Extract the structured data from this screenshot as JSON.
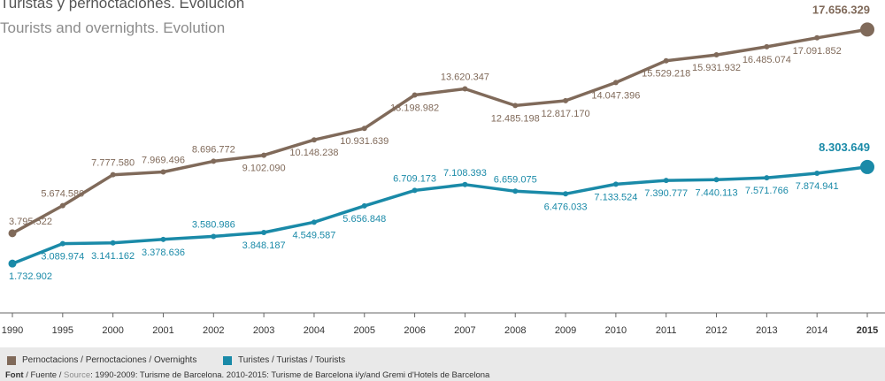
{
  "header": {
    "title": "Turistas y pernoctaciones. Evolución",
    "subtitle": "Tourists and overnights. Evolution"
  },
  "colors": {
    "overnights": "#806a5a",
    "tourists": "#1a8aa8",
    "axis": "#666666"
  },
  "legend": {
    "overnights_label": "Pernoctacions / Pernoctaciones / Overnights",
    "tourists_label": "Turistes / Turistas / Tourists"
  },
  "source": {
    "label": "Font",
    "label_middle": " / Fuente / ",
    "label_en": "Source",
    "text": ": 1990-2009: Turisme de Barcelona. 2010-2015: Turisme de Barcelona i/y/and Gremi d'Hotels de Barcelona"
  },
  "chart_data": {
    "type": "line",
    "x": [
      "1990",
      "1995",
      "2000",
      "2001",
      "2002",
      "2003",
      "2004",
      "2005",
      "2006",
      "2007",
      "2008",
      "2009",
      "2010",
      "2011",
      "2012",
      "2013",
      "2014",
      "2015"
    ],
    "ylim": [
      0,
      18500000
    ],
    "grid": false,
    "legend_position": "bottom",
    "series": [
      {
        "name": "Pernoctacions / Pernoctaciones / Overnights",
        "values": [
          3795522,
          5674580,
          7777580,
          7969496,
          8696772,
          9102090,
          10148238,
          10931639,
          13198982,
          13620347,
          12485198,
          12817170,
          14047396,
          15529218,
          15931932,
          16485074,
          17091852,
          17656329
        ],
        "labels": [
          "3.795.522",
          "5.674.580",
          "7.777.580",
          "7.969.496",
          "8.696.772",
          "9.102.090",
          "10.148.238",
          "10.931.639",
          "13.198.982",
          "13.620.347",
          "12.485.198",
          "12.817.170",
          "14.047.396",
          "15.529.218",
          "15.931.932",
          "16.485.074",
          "17.091.852",
          "17.656.329"
        ]
      },
      {
        "name": "Turistes / Turistas / Tourists",
        "values": [
          1732902,
          3089974,
          3141162,
          3378636,
          3580986,
          3848187,
          4549587,
          5656848,
          6709173,
          7108393,
          6659075,
          6476033,
          7133524,
          7390777,
          7440113,
          7571766,
          7874941,
          8303649
        ],
        "labels": [
          "1.732.902",
          "3.089.974",
          "3.141.162",
          "3.378.636",
          "3.580.986",
          "3.848.187",
          "4.549.587",
          "5.656.848",
          "6.709.173",
          "7.108.393",
          "6.659.075",
          "6.476.033",
          "7.133.524",
          "7.390.777",
          "7.440.113",
          "7.571.766",
          "7.874.941",
          "8.303.649"
        ]
      }
    ]
  }
}
